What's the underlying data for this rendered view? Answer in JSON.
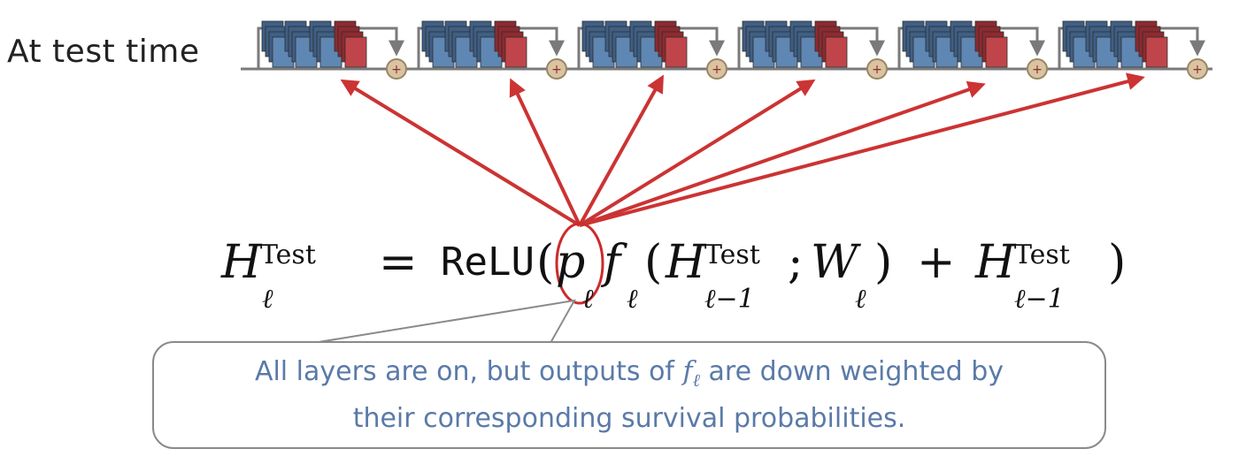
{
  "heading": "At test time",
  "network": {
    "block_count": 6,
    "colors": {
      "blue": "#5f87b3",
      "blue_dark": "#3f5f85",
      "red": "#c0454a",
      "red_dark": "#8e2a2f",
      "connector": "#7a7a7a",
      "adder": "#d9c3a0",
      "adder_border": "#9a8565",
      "arrow": "#cc3333"
    },
    "adder_symbol": "+"
  },
  "equation": {
    "lhs_symbol": "H",
    "lhs_sub": "ℓ",
    "lhs_sup": "Test",
    "equals": "=",
    "relu": "ReLU",
    "open_paren": "(",
    "p_symbol": "p",
    "p_sub": "ℓ",
    "f_symbol": "f",
    "f_sub": "ℓ",
    "open_paren_2": "(",
    "h_prev_symbol": "H",
    "h_prev_sup": "Test",
    "h_prev_sub": "ℓ−1",
    "semicolon": ";",
    "w_symbol": "W",
    "w_sub": "ℓ",
    "close_paren_2": ")",
    "plus": "+",
    "h_prev2_symbol": "H",
    "h_prev2_sup": "Test",
    "h_prev2_sub": "ℓ−1",
    "close_paren": ")",
    "highlight_color": "#cc2b2b"
  },
  "callout": {
    "line1_before": "All layers are on, but outputs of ",
    "line1_symbol": "f",
    "line1_symbol_sub": "ℓ",
    "line1_after": " are down weighted by",
    "line2": "their corresponding survival probabilities.",
    "text_color": "#5a7aa8",
    "border_color": "#8a8a8a"
  }
}
